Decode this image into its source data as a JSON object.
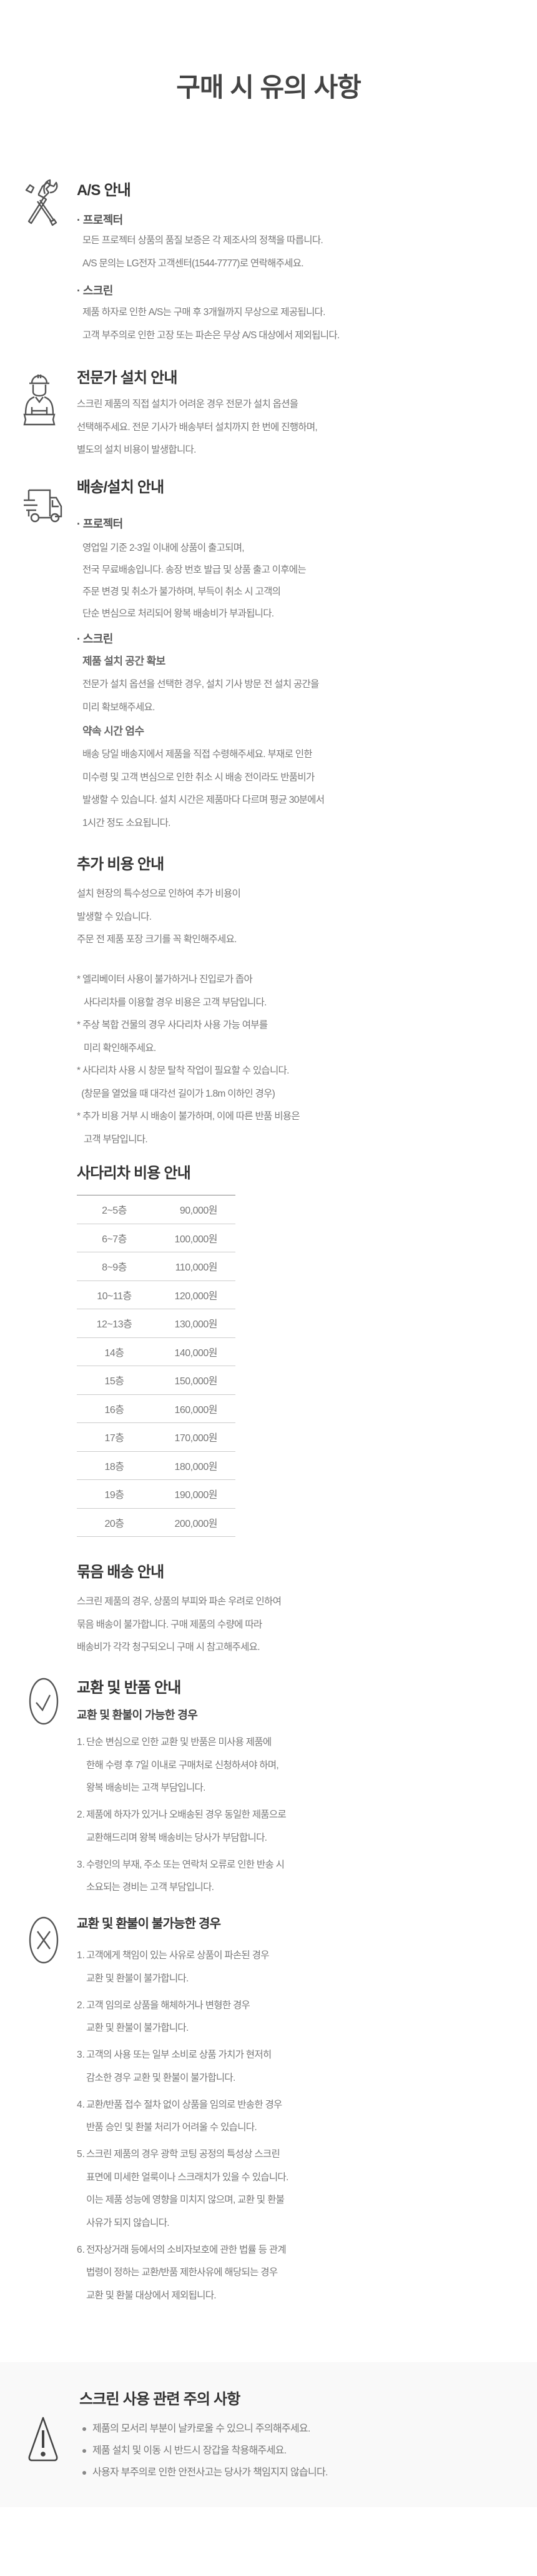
{
  "title": "구매 시 유의 사항",
  "as": {
    "heading": "A/S 안내",
    "projector": {
      "label": "· 프로젝터",
      "lines": [
        "모든 프로젝터 상품의 품질 보증은 각 제조사의 정책을 따릅니다.",
        "A/S 문의는 LG전자 고객센터(1544-7777)로 연락해주세요."
      ]
    },
    "screen": {
      "label": "· 스크린",
      "lines": [
        "제품 하자로 인한 A/S는 구매 후 3개월까지 무상으로 제공됩니다.",
        "고객 부주의로 인한 고장 또는 파손은 무상 A/S 대상에서 제외됩니다."
      ]
    }
  },
  "expert": {
    "heading": "전문가 설치 안내",
    "lines": [
      "스크린 제품의 직접 설치가 어려운 경우 전문가 설치 옵션을",
      "선택해주세요. 전문 기사가 배송부터 설치까지 한 번에 진행하며,",
      "별도의 설치 비용이 발생합니다."
    ]
  },
  "delivery": {
    "heading": "배송/설치 안내",
    "projector": {
      "label": "· 프로젝터",
      "lines": [
        "영업일 기준 2-3일 이내에 상품이 출고되며,",
        "전국 무료배송입니다. 송장 번호 발급 및 상품 출고 이후에는",
        "주문 변경 및 취소가 불가하며, 부득이 취소 시 고객의",
        "단순 변심으로 처리되어 왕복 배송비가 부과됩니다."
      ]
    },
    "screen": {
      "label": "· 스크린",
      "space": {
        "title": "제품 설치 공간 확보",
        "lines": [
          "전문가 설치 옵션을 선택한 경우, 설치 기사 방문 전 설치 공간을",
          "미리 확보해주세요."
        ]
      },
      "time": {
        "title": "약속 시간 엄수",
        "lines": [
          "배송 당일 배송지에서 제품을 직접 수령해주세요. 부재로 인한",
          "미수령 및 고객 변심으로 인한 취소 시 배송 전이라도 반품비가",
          "발생할 수 있습니다. 설치 시간은 제품마다 다르며 평균 30분에서",
          "1시간 정도 소요됩니다."
        ]
      }
    }
  },
  "extra_cost": {
    "heading": "추가 비용 안내",
    "lines": [
      "설치 현장의 특수성으로 인하여 추가 비용이",
      "발생할 수 있습니다.",
      "주문 전 제품 포장 크기를 꼭 확인해주세요."
    ],
    "notes": [
      "* 엘리베이터 사용이 불가하거나 진입로가 좁아",
      "   사다리차를 이용할 경우 비용은 고객 부담입니다.",
      "* 주상 복합 건물의 경우 사다리차 사용 가능 여부를",
      "   미리 확인해주세요.",
      "* 사다리차 사용 시 창문 탈착 작업이 필요할 수 있습니다.",
      "  (창문을 열었을 때 대각선 길이가 1.8m 이하인 경우)",
      "* 추가 비용 거부 시 배송이 불가하며, 이에 따른 반품 비용은",
      "   고객 부담입니다."
    ]
  },
  "ladder": {
    "heading": "사다리차 비용 안내",
    "rows": [
      {
        "floor": "2~5층",
        "price": "90,000원"
      },
      {
        "floor": "6~7층",
        "price": "100,000원"
      },
      {
        "floor": "8~9층",
        "price": "110,000원"
      },
      {
        "floor": "10~11층",
        "price": "120,000원"
      },
      {
        "floor": "12~13층",
        "price": "130,000원"
      },
      {
        "floor": "14층",
        "price": "140,000원"
      },
      {
        "floor": "15층",
        "price": "150,000원"
      },
      {
        "floor": "16층",
        "price": "160,000원"
      },
      {
        "floor": "17층",
        "price": "170,000원"
      },
      {
        "floor": "18층",
        "price": "180,000원"
      },
      {
        "floor": "19층",
        "price": "190,000원"
      },
      {
        "floor": "20층",
        "price": "200,000원"
      }
    ]
  },
  "bundle": {
    "heading": "묶음 배송 안내",
    "lines": [
      "스크린 제품의 경우, 상품의 부피와 파손 우려로 인하여",
      "묶음 배송이 불가합니다. 구매 제품의 수량에 따라",
      "배송비가 각각 청구되오니 구매 시 참고해주세요."
    ]
  },
  "exchange": {
    "heading": "교환 및 반품 안내",
    "possible": {
      "title": "교환 및 환불이 가능한 경우",
      "items": [
        {
          "num": "1.",
          "lines": [
            "단순 변심으로 인한 교환 및 반품은 미사용 제품에",
            "한해 수령 후 7일 이내로 구매처로 신청하셔야 하며,",
            "왕복 배송비는 고객 부담입니다."
          ]
        },
        {
          "num": "2.",
          "lines": [
            "제품에 하자가 있거나 오배송된 경우 동일한 제품으로",
            "교환해드리며 왕복 배송비는 당사가 부담합니다."
          ]
        },
        {
          "num": "3.",
          "lines": [
            "수령인의 부재, 주소 또는 연락처 오류로 인한 반송 시",
            "소요되는 경비는 고객 부담입니다."
          ]
        }
      ]
    },
    "impossible": {
      "title": "교환 및 환불이 불가능한 경우",
      "items": [
        {
          "num": "1.",
          "lines": [
            "고객에게 책임이 있는 사유로 상품이 파손된 경우",
            "교환 및 환불이 불가합니다."
          ]
        },
        {
          "num": "2.",
          "lines": [
            "고객 임의로 상품을 해체하거나 변형한 경우",
            "교환 및 환불이 불가합니다."
          ]
        },
        {
          "num": "3.",
          "lines": [
            "고객의 사용 또는 일부 소비로 상품 가치가 현저히",
            "감소한 경우 교환 및 환불이 불가합니다."
          ]
        },
        {
          "num": "4.",
          "lines": [
            "교환/반품 접수 절차 없이 상품을 임의로 반송한 경우",
            "반품 승인 및 환불 처리가 어려울 수 있습니다."
          ]
        },
        {
          "num": "5.",
          "lines": [
            "스크린 제품의 경우 광학 코팅 공정의 특성상 스크린",
            "표면에 미세한 얼룩이나 스크래치가 있을 수 있습니다.",
            "이는 제품 성능에 영향을 미치지 않으며, 교환 및 환불",
            "사유가 되지 않습니다."
          ]
        },
        {
          "num": "6.",
          "lines": [
            "전자상거래 등에서의 소비자보호에 관한 법률 등 관계",
            "법령이 정하는 교환/반품 제한사유에 해당되는 경우",
            "교환 및 환불 대상에서 제외됩니다."
          ]
        }
      ]
    }
  },
  "caution": {
    "heading": "스크린 사용 관련 주의 사항",
    "items": [
      "제품의 모서리 부분이 날카로울 수 있으니 주의해주세요.",
      "제품 설치 및 이동 시 반드시 장갑을 착용해주세요.",
      "사용자 부주의로 인한 안전사고는 당사가 책임지지 않습니다."
    ]
  },
  "icons": {
    "as": "tools-icon",
    "expert": "installer-icon",
    "delivery": "truck-icon",
    "possible": "check-circle-icon",
    "impossible": "x-circle-icon",
    "caution": "warning-icon"
  },
  "colors": {
    "heading": "#333333",
    "body": "#777777",
    "caution_bg": "#f9f9f9"
  }
}
